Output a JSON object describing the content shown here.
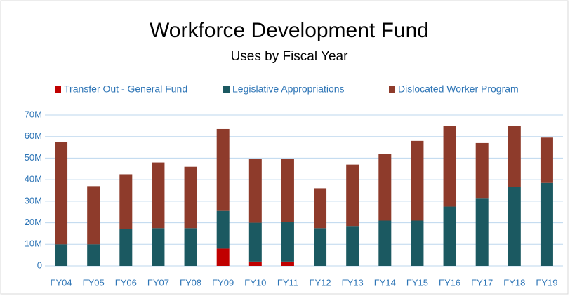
{
  "chart_data": {
    "type": "stacked_bar",
    "title": "Workforce Development Fund",
    "subtitle": "Uses by Fiscal Year",
    "categories": [
      "FY04",
      "FY05",
      "FY06",
      "FY07",
      "FY08",
      "FY09",
      "FY10",
      "FY11",
      "FY12",
      "FY13",
      "FY14",
      "FY15",
      "FY16",
      "FY17",
      "FY18",
      "FY19"
    ],
    "series": [
      {
        "name": "Transfer Out - General Fund",
        "color": "#c00000",
        "values": [
          0,
          0,
          0,
          0,
          0,
          8,
          2,
          2,
          0,
          0,
          0,
          0,
          0,
          0,
          0,
          0
        ]
      },
      {
        "name": "Legislative Appropriations",
        "color": "#1b5961",
        "values": [
          10,
          10,
          17,
          17.5,
          17.5,
          17.5,
          18,
          18.5,
          17.5,
          18.5,
          21,
          21,
          27.5,
          31.5,
          36.5,
          38.5
        ]
      },
      {
        "name": "Dislocated Worker Program",
        "color": "#8e3b2b",
        "values": [
          47.5,
          27,
          25.5,
          30.5,
          28.5,
          38,
          29.5,
          29,
          18.5,
          28.5,
          31,
          37,
          37.5,
          25.5,
          28.5,
          21
        ]
      }
    ],
    "ylim": [
      0,
      70
    ],
    "yticks": [
      0,
      {
        "value": 10,
        "label": "10M"
      },
      {
        "value": 20,
        "label": "20M"
      },
      {
        "value": 30,
        "label": "30M"
      },
      {
        "value": 40,
        "label": "40M"
      },
      {
        "value": 50,
        "label": "50M"
      },
      {
        "value": 60,
        "label": "60M"
      },
      {
        "value": 70,
        "label": "70M"
      }
    ],
    "grid": true
  }
}
